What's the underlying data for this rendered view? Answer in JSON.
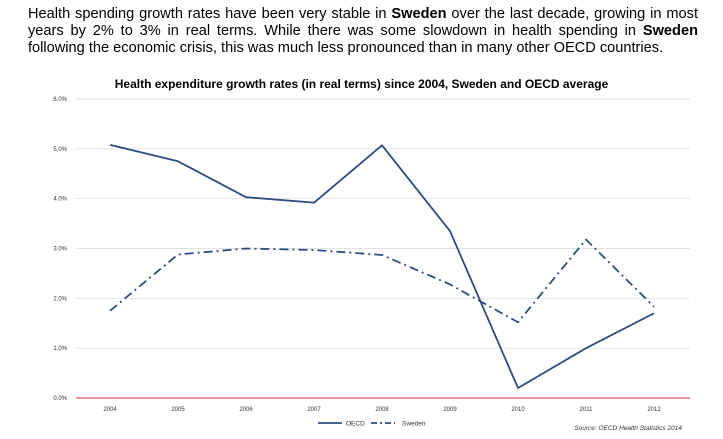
{
  "intro": {
    "part1": "Health spending growth rates have been very stable in ",
    "bold1": "Sweden",
    "part2": " over the last decade, growing in most years by 2% to 3% in real terms. While there was some slowdown in health spending in ",
    "bold2": "Sweden",
    "part3": " following the economic crisis, this was much less pronounced than in many other OECD countries."
  },
  "source": "Source: OECD Health Statistics 2014",
  "colors": {
    "series_line": "#2e4d7e",
    "zero_line": "#e05a5a",
    "grid": "#d9d9d9"
  },
  "chart_data": {
    "type": "line",
    "title": "Health expenditure growth rates (in real terms) since 2004, Sweden and OECD average",
    "xlabel": "",
    "ylabel": "",
    "categories": [
      "2004",
      "2005",
      "2006",
      "2007",
      "2008",
      "2009",
      "2010",
      "2011",
      "2012"
    ],
    "yticks": [
      "0.0%",
      "1.0%",
      "2.0%",
      "3.0%",
      "4.0%",
      "5.0%",
      "6.0%"
    ],
    "ylim": [
      0,
      6
    ],
    "grid": true,
    "legend_position": "bottom-center",
    "series": [
      {
        "name": "OECD",
        "style": "solid",
        "values": [
          5.08,
          4.75,
          4.03,
          3.92,
          5.07,
          3.35,
          0.2,
          1.0,
          1.7
        ]
      },
      {
        "name": "Sweden",
        "style": "dash-dot",
        "values": [
          1.75,
          2.88,
          3.0,
          2.97,
          2.87,
          2.28,
          1.52,
          3.18,
          1.83
        ]
      }
    ]
  }
}
